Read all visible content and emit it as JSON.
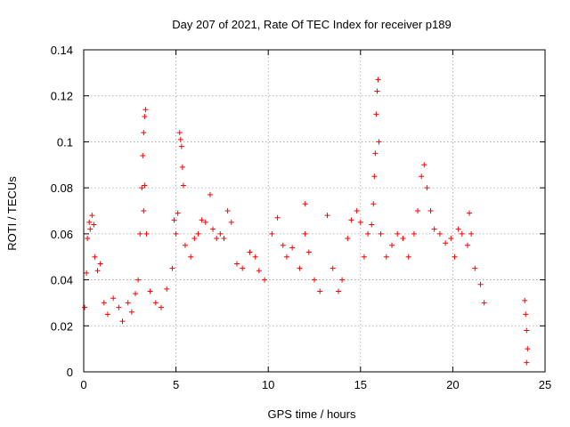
{
  "chart_data": {
    "type": "scatter",
    "title": "Day 207 of 2021, Rate Of TEC Index for receiver p189",
    "xlabel": "GPS time / hours",
    "ylabel": "ROTI / TECUs",
    "xlim": [
      0,
      25
    ],
    "ylim": [
      0,
      0.14
    ],
    "xticks": [
      0,
      5,
      10,
      15,
      20,
      25
    ],
    "yticks": [
      0,
      0.02,
      0.04,
      0.06,
      0.08,
      0.1,
      0.12,
      0.14
    ],
    "ytick_labels": [
      "0",
      "0.02",
      "0.04",
      "0.06",
      "0.08",
      "0.1",
      "0.12",
      "0.14"
    ],
    "xtick_labels": [
      "0",
      "5",
      "10",
      "15",
      "20",
      "25"
    ],
    "grid": true,
    "marker": "plus",
    "color": "#ff0000",
    "series": [
      {
        "points": [
          [
            0.05,
            0.028
          ],
          [
            0.15,
            0.043
          ],
          [
            0.2,
            0.058
          ],
          [
            0.3,
            0.065
          ],
          [
            0.35,
            0.062
          ],
          [
            0.45,
            0.068
          ],
          [
            0.55,
            0.064
          ],
          [
            0.6,
            0.05
          ],
          [
            0.75,
            0.044
          ],
          [
            0.9,
            0.047
          ],
          [
            1.1,
            0.03
          ],
          [
            1.3,
            0.025
          ],
          [
            1.6,
            0.032
          ],
          [
            1.9,
            0.028
          ],
          [
            2.1,
            0.022
          ],
          [
            2.4,
            0.03
          ],
          [
            2.6,
            0.026
          ],
          [
            2.8,
            0.034
          ],
          [
            2.95,
            0.04
          ],
          [
            3.05,
            0.06
          ],
          [
            3.15,
            0.08
          ],
          [
            3.2,
            0.094
          ],
          [
            3.25,
            0.104
          ],
          [
            3.3,
            0.111
          ],
          [
            3.35,
            0.114
          ],
          [
            3.3,
            0.081
          ],
          [
            3.25,
            0.07
          ],
          [
            3.4,
            0.06
          ],
          [
            3.6,
            0.035
          ],
          [
            3.9,
            0.03
          ],
          [
            4.2,
            0.028
          ],
          [
            4.5,
            0.036
          ],
          [
            4.8,
            0.045
          ],
          [
            4.9,
            0.066
          ],
          [
            5.0,
            0.06
          ],
          [
            5.1,
            0.069
          ],
          [
            5.2,
            0.104
          ],
          [
            5.25,
            0.101
          ],
          [
            5.3,
            0.098
          ],
          [
            5.35,
            0.089
          ],
          [
            5.4,
            0.081
          ],
          [
            5.5,
            0.055
          ],
          [
            5.8,
            0.05
          ],
          [
            6.0,
            0.058
          ],
          [
            6.2,
            0.06
          ],
          [
            6.4,
            0.066
          ],
          [
            6.6,
            0.065
          ],
          [
            6.85,
            0.077
          ],
          [
            7.0,
            0.062
          ],
          [
            7.2,
            0.058
          ],
          [
            7.4,
            0.06
          ],
          [
            7.6,
            0.058
          ],
          [
            7.8,
            0.07
          ],
          [
            8.0,
            0.065
          ],
          [
            8.3,
            0.047
          ],
          [
            8.6,
            0.045
          ],
          [
            9.0,
            0.052
          ],
          [
            9.3,
            0.05
          ],
          [
            9.5,
            0.044
          ],
          [
            9.8,
            0.04
          ],
          [
            10.2,
            0.06
          ],
          [
            10.5,
            0.067
          ],
          [
            10.8,
            0.055
          ],
          [
            11.0,
            0.05
          ],
          [
            11.3,
            0.054
          ],
          [
            11.7,
            0.045
          ],
          [
            12.0,
            0.06
          ],
          [
            12.2,
            0.052
          ],
          [
            12.0,
            0.073
          ],
          [
            12.5,
            0.04
          ],
          [
            12.8,
            0.035
          ],
          [
            13.2,
            0.068
          ],
          [
            13.5,
            0.045
          ],
          [
            13.8,
            0.035
          ],
          [
            14.0,
            0.04
          ],
          [
            14.3,
            0.058
          ],
          [
            14.5,
            0.066
          ],
          [
            14.8,
            0.07
          ],
          [
            15.0,
            0.065
          ],
          [
            15.2,
            0.05
          ],
          [
            15.4,
            0.06
          ],
          [
            15.6,
            0.064
          ],
          [
            15.7,
            0.073
          ],
          [
            15.75,
            0.085
          ],
          [
            15.8,
            0.095
          ],
          [
            15.85,
            0.112
          ],
          [
            15.9,
            0.122
          ],
          [
            15.95,
            0.127
          ],
          [
            16.0,
            0.1
          ],
          [
            16.1,
            0.06
          ],
          [
            16.4,
            0.05
          ],
          [
            16.7,
            0.055
          ],
          [
            17.0,
            0.06
          ],
          [
            17.3,
            0.058
          ],
          [
            17.6,
            0.05
          ],
          [
            17.9,
            0.06
          ],
          [
            18.1,
            0.07
          ],
          [
            18.3,
            0.085
          ],
          [
            18.45,
            0.09
          ],
          [
            18.6,
            0.08
          ],
          [
            18.8,
            0.07
          ],
          [
            19.0,
            0.062
          ],
          [
            19.3,
            0.06
          ],
          [
            19.6,
            0.056
          ],
          [
            19.9,
            0.058
          ],
          [
            20.1,
            0.05
          ],
          [
            20.3,
            0.062
          ],
          [
            20.5,
            0.06
          ],
          [
            20.8,
            0.055
          ],
          [
            20.9,
            0.069
          ],
          [
            21.0,
            0.06
          ],
          [
            21.2,
            0.045
          ],
          [
            21.5,
            0.038
          ],
          [
            21.7,
            0.03
          ],
          [
            23.9,
            0.031
          ],
          [
            23.95,
            0.025
          ],
          [
            24.0,
            0.018
          ],
          [
            24.05,
            0.01
          ],
          [
            24.0,
            0.004
          ]
        ]
      }
    ]
  }
}
